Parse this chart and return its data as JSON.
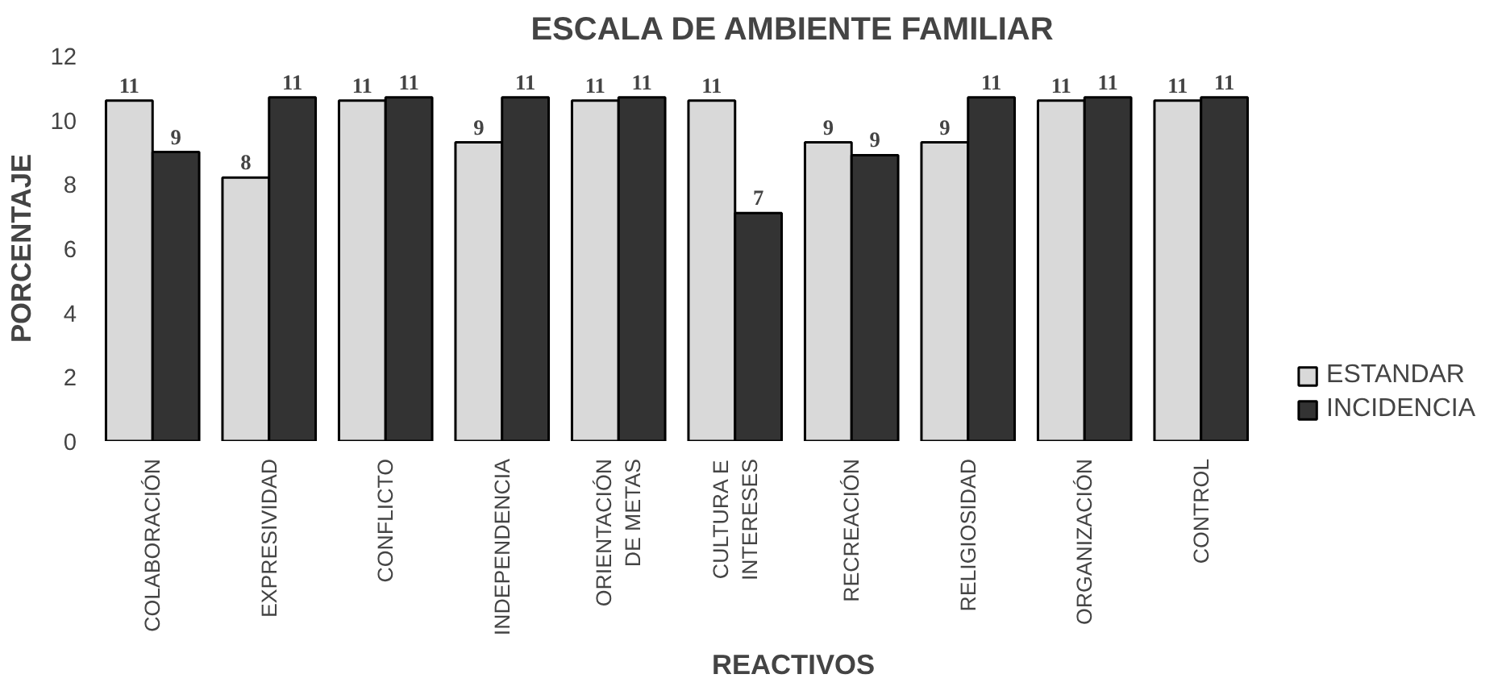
{
  "chart_data": {
    "type": "bar",
    "title": "ESCALA DE AMBIENTE FAMILIAR",
    "xlabel": "REACTIVOS",
    "ylabel": "PORCENTAJE",
    "categories": [
      "COLABORACIÓN",
      "EXPRESIVIDAD",
      "CONFLICTO",
      "INDEPENDENCIA",
      "ORIENTACIÓN\nDE METAS",
      "CULTURA E\nINTERESES",
      "RECREACIÓN",
      "RELIGIOSIDAD",
      "ORGANIZACIÓN",
      "CONTROL"
    ],
    "series": [
      {
        "name": "ESTANDAR",
        "color": "#d9d9d9",
        "values": [
          10.6,
          8.2,
          10.6,
          9.3,
          10.6,
          10.6,
          9.3,
          9.3,
          10.6,
          10.6
        ],
        "value_labels": [
          "11",
          "8",
          "11",
          "9",
          "11",
          "11",
          "9",
          "9",
          "11",
          "11"
        ]
      },
      {
        "name": "INCIDENCIA",
        "color": "#333333",
        "values": [
          9.0,
          10.7,
          10.7,
          10.7,
          10.7,
          7.1,
          8.9,
          10.7,
          10.7,
          10.7
        ],
        "value_labels": [
          "9",
          "11",
          "11",
          "11",
          "11",
          "7",
          "9",
          "11",
          "11",
          "11"
        ]
      }
    ],
    "ylim": [
      0,
      12
    ],
    "yticks": [
      0,
      2,
      4,
      6,
      8,
      10,
      12
    ],
    "grid": false,
    "legend": "bottom right"
  }
}
